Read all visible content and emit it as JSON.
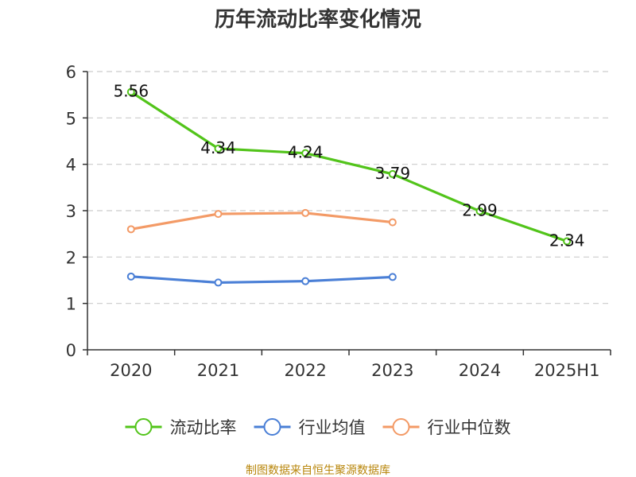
{
  "chart_data": {
    "type": "line",
    "title": "历年流动比率变化情况",
    "categories": [
      "2020",
      "2021",
      "2022",
      "2023",
      "2024",
      "2025H1"
    ],
    "ylim": [
      0,
      6
    ],
    "yticks": [
      0,
      1,
      2,
      3,
      4,
      5,
      6
    ],
    "grid": true,
    "legend_position": "bottom",
    "series": [
      {
        "name": "流动比率",
        "color": "#52c41a",
        "values": [
          5.56,
          4.34,
          4.24,
          3.79,
          2.99,
          2.34
        ],
        "labels": [
          "5.56",
          "4.34",
          "4.24",
          "3.79",
          "2.99",
          "2.34"
        ]
      },
      {
        "name": "行业均值",
        "color": "#4a7fd6",
        "values": [
          1.58,
          1.45,
          1.48,
          1.57,
          null,
          null
        ]
      },
      {
        "name": "行业中位数",
        "color": "#f39a66",
        "values": [
          2.6,
          2.93,
          2.95,
          2.75,
          null,
          null
        ]
      }
    ]
  },
  "source_text": "制图数据来自恒生聚源数据库"
}
